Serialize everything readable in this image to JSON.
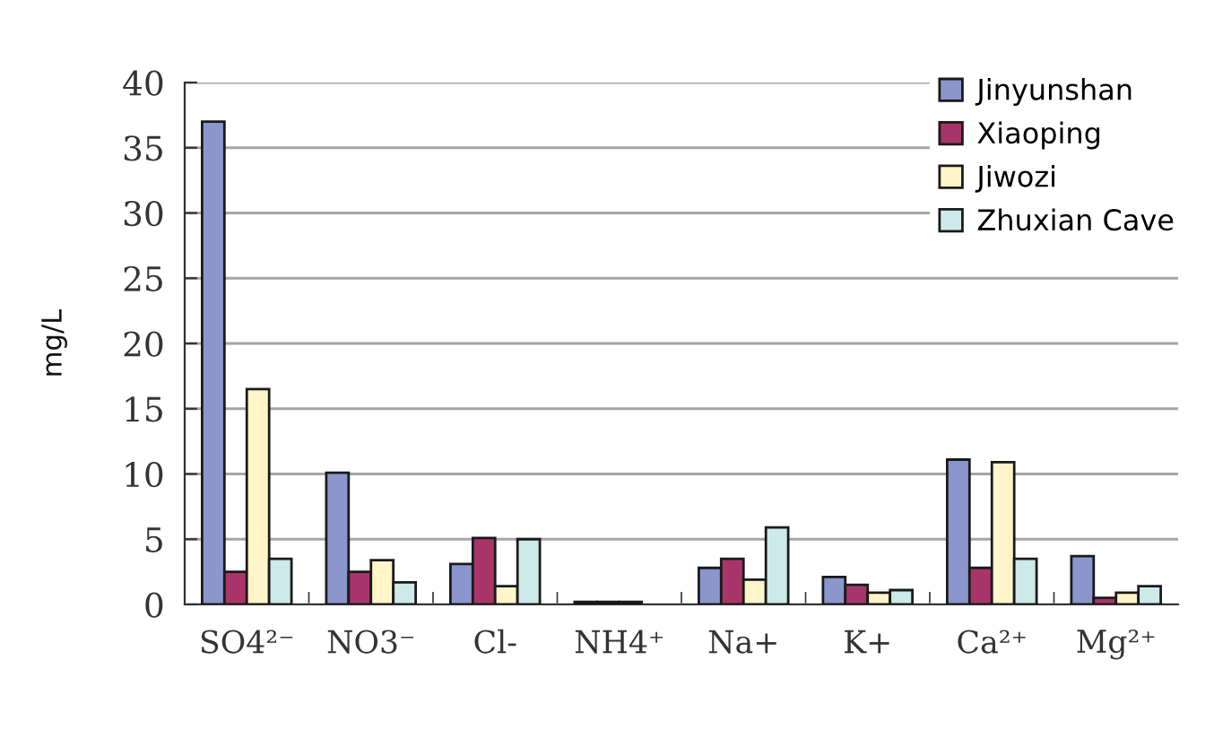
{
  "chart_data": {
    "type": "bar",
    "categories": [
      "SO4²⁻",
      "NO3⁻",
      "Cl-",
      "NH4⁺",
      "Na+",
      "K+",
      "Ca²⁺",
      "Mg²⁺"
    ],
    "ylabel": "mg/L",
    "ylim": [
      0,
      40
    ],
    "yticks": [
      0,
      5,
      10,
      15,
      20,
      25,
      30,
      35,
      40
    ],
    "grid": "y",
    "legend": "top right",
    "series": [
      {
        "name": "Jinyunshan",
        "color": "#8a96cc",
        "values": [
          37.0,
          10.1,
          3.1,
          0.2,
          2.8,
          2.1,
          11.1,
          3.7
        ]
      },
      {
        "name": "Xiaoping",
        "color": "#a8356a",
        "values": [
          2.5,
          2.5,
          5.1,
          0.2,
          3.5,
          1.5,
          2.8,
          0.5
        ]
      },
      {
        "name": "Jiwozi",
        "color": "#fff5c8",
        "values": [
          16.5,
          3.4,
          1.4,
          0.2,
          1.9,
          0.9,
          10.9,
          0.9
        ]
      },
      {
        "name": "Zhuxian Cave",
        "color": "#cceaea",
        "values": [
          3.5,
          1.7,
          5.0,
          null,
          5.9,
          1.1,
          3.5,
          1.4
        ]
      }
    ]
  }
}
